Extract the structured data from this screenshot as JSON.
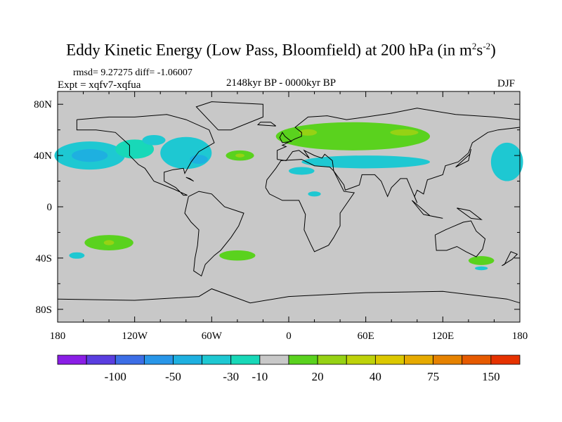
{
  "chart_data": {
    "type": "heatmap",
    "title": "Eddy Kinetic Energy (Low Pass, Bloomfield) at 200 hPa (in m",
    "title_sup1": "2",
    "title_mid": "s",
    "title_sup2": "-2",
    "title_end": ")",
    "stats": "rmsd= 9.27275  diff= -1.06007",
    "experiment": "Expt = xqfv7-xqfua",
    "period": "2148kyr BP - 0000kyr BP",
    "season": "DJF",
    "x_ticks": [
      {
        "value": -180,
        "label": "180"
      },
      {
        "value": -120,
        "label": "120W"
      },
      {
        "value": -60,
        "label": "60W"
      },
      {
        "value": 0,
        "label": "0"
      },
      {
        "value": 60,
        "label": "60E"
      },
      {
        "value": 120,
        "label": "120E"
      },
      {
        "value": 180,
        "label": "180"
      }
    ],
    "y_ticks": [
      {
        "value": 80,
        "label": "80N"
      },
      {
        "value": 40,
        "label": "40N"
      },
      {
        "value": 0,
        "label": "0"
      },
      {
        "value": -40,
        "label": "40S"
      },
      {
        "value": -80,
        "label": "80S"
      }
    ],
    "xlim": [
      -180,
      180
    ],
    "ylim": [
      -90,
      90
    ],
    "colorbar": {
      "labels": [
        "-100",
        "-50",
        "-30",
        "-10",
        "20",
        "40",
        "75",
        "150"
      ],
      "colors": [
        "#8a1ee6",
        "#5a3ee0",
        "#3c6ee6",
        "#2896e8",
        "#1eb0e0",
        "#1ec8d2",
        "#18d8b8",
        "#c8c8c8",
        "#5ad21e",
        "#96d214",
        "#bed20a",
        "#dcc800",
        "#e6aa00",
        "#e68200",
        "#e65a00",
        "#e63200"
      ]
    },
    "background_color": "#c8c8c8",
    "anomalies": [
      {
        "lon": -155,
        "lat": 40,
        "w": 55,
        "h": 22,
        "color": "#1ec8d2"
      },
      {
        "lon": -155,
        "lat": 40,
        "w": 28,
        "h": 10,
        "color": "#1eb0e0"
      },
      {
        "lon": -120,
        "lat": 45,
        "w": 30,
        "h": 15,
        "color": "#18d8b8"
      },
      {
        "lon": -80,
        "lat": 42,
        "w": 40,
        "h": 25,
        "color": "#1ec8d2"
      },
      {
        "lon": -70,
        "lat": 37,
        "w": 14,
        "h": 7,
        "color": "#1eb0e0"
      },
      {
        "lon": -105,
        "lat": 52,
        "w": 18,
        "h": 8,
        "color": "#1ec8d2"
      },
      {
        "lon": -38,
        "lat": 40,
        "w": 22,
        "h": 8,
        "color": "#5ad21e"
      },
      {
        "lon": -38,
        "lat": 40,
        "w": 7,
        "h": 3,
        "color": "#96d214"
      },
      {
        "lon": 50,
        "lat": 55,
        "w": 120,
        "h": 22,
        "color": "#5ad21e"
      },
      {
        "lon": 15,
        "lat": 58,
        "w": 14,
        "h": 5,
        "color": "#96d214"
      },
      {
        "lon": 90,
        "lat": 58,
        "w": 22,
        "h": 5,
        "color": "#96d214"
      },
      {
        "lon": 60,
        "lat": 35,
        "w": 100,
        "h": 10,
        "color": "#1ec8d2"
      },
      {
        "lon": 10,
        "lat": 28,
        "w": 20,
        "h": 6,
        "color": "#1ec8d2"
      },
      {
        "lon": 20,
        "lat": 10,
        "w": 10,
        "h": 4,
        "color": "#1ec8d2"
      },
      {
        "lon": 170,
        "lat": 35,
        "w": 25,
        "h": 30,
        "color": "#1ec8d2"
      },
      {
        "lon": -140,
        "lat": -28,
        "w": 38,
        "h": 12,
        "color": "#5ad21e"
      },
      {
        "lon": -140,
        "lat": -28,
        "w": 8,
        "h": 4,
        "color": "#96d214"
      },
      {
        "lon": -165,
        "lat": -38,
        "w": 12,
        "h": 5,
        "color": "#1ec8d2"
      },
      {
        "lon": -40,
        "lat": -38,
        "w": 28,
        "h": 8,
        "color": "#5ad21e"
      },
      {
        "lon": 150,
        "lat": -42,
        "w": 20,
        "h": 7,
        "color": "#5ad21e"
      },
      {
        "lon": 150,
        "lat": -48,
        "w": 10,
        "h": 3,
        "color": "#1ec8d2"
      }
    ]
  }
}
